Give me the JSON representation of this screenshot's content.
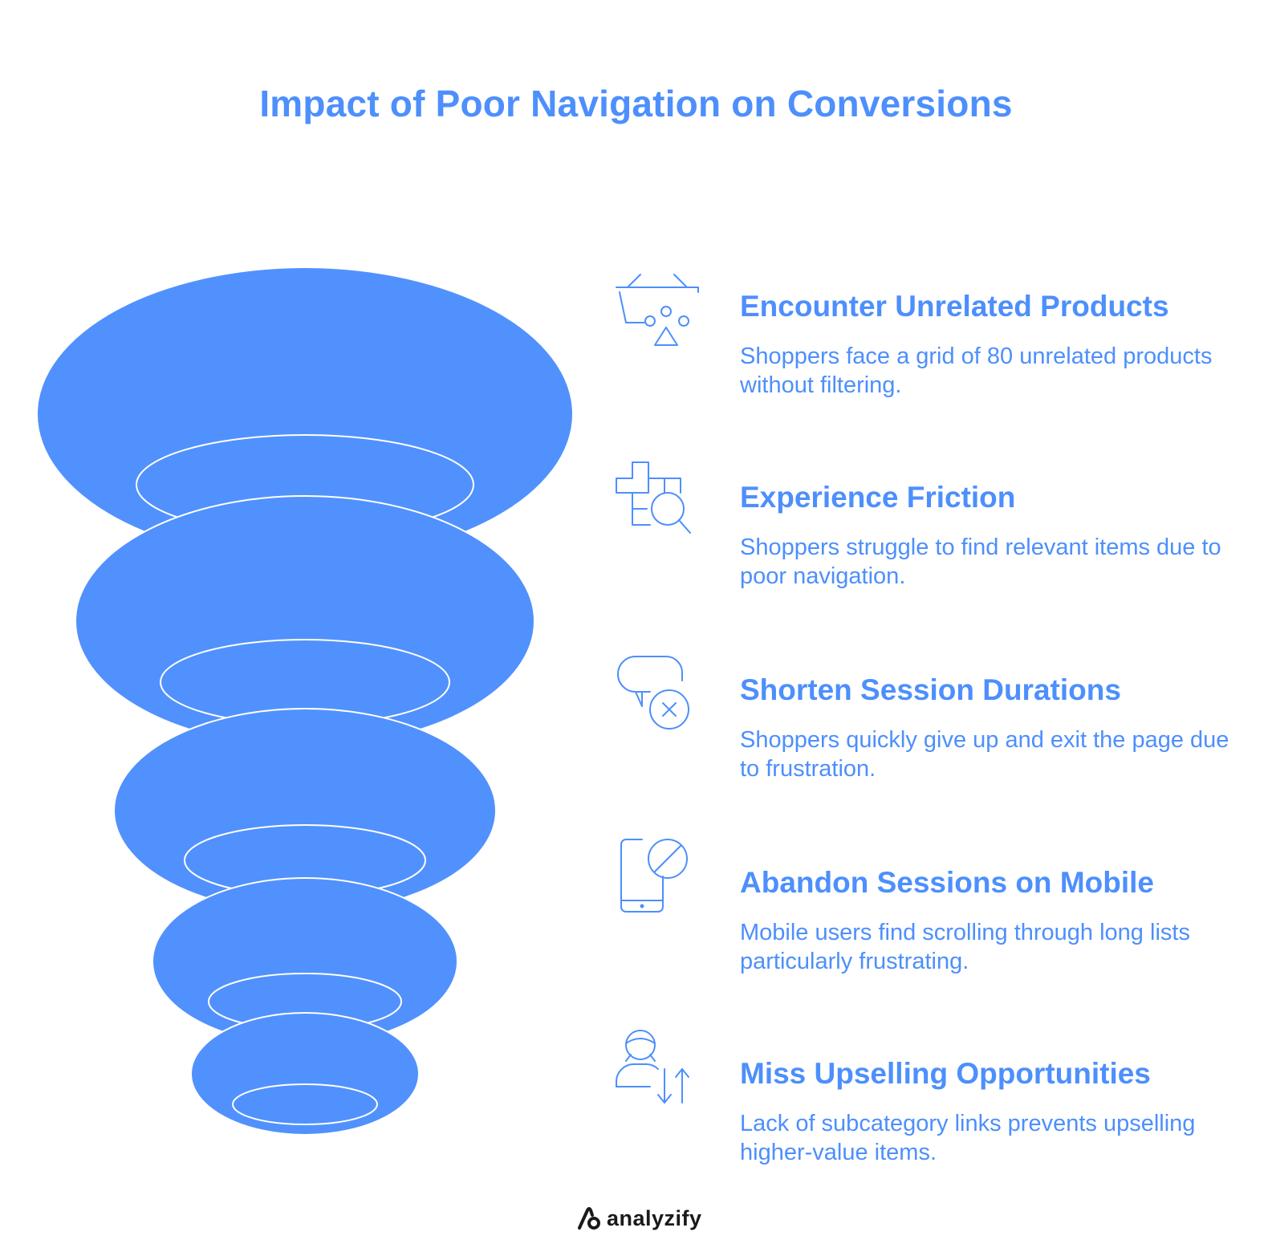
{
  "title": "Impact of Poor Navigation on Conversions",
  "colors": {
    "accent": "#4d8ffc",
    "funnel_fill": "#5191fd",
    "background": "#ffffff",
    "logo_text": "#1a1a1a"
  },
  "stages": [
    {
      "title": "Encounter Unrelated Products",
      "description": "Shoppers face a grid of 80 unrelated products without filtering.",
      "icon": "shopping-basket-icon"
    },
    {
      "title": "Experience Friction",
      "description": "Shoppers struggle to find relevant items due to poor navigation.",
      "icon": "grid-search-icon"
    },
    {
      "title": "Shorten Session Durations",
      "description": "Shoppers quickly give up and exit the page due to frustration.",
      "icon": "chat-close-icon"
    },
    {
      "title": "Abandon Sessions on Mobile",
      "description": "Mobile users find scrolling through long lists particularly frustrating.",
      "icon": "mobile-blocked-icon"
    },
    {
      "title": "Miss Upselling Opportunities",
      "description": "Lack of subcategory links prevents upselling higher-value items.",
      "icon": "user-sort-icon"
    }
  ],
  "logo": {
    "text": "analyzify"
  }
}
